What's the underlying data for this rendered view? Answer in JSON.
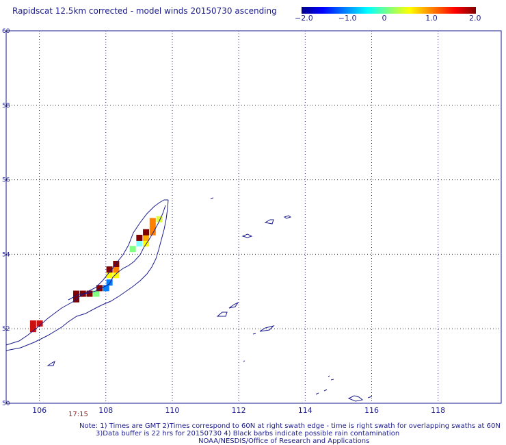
{
  "title": "Rapidscat 12.5km corrected - model winds 20150730 ascending",
  "colorbar": {
    "ticks": [
      "−2.0",
      "−1.0",
      "0",
      "1.0",
      "2.0"
    ],
    "tick_values": [
      -2.0,
      -1.0,
      0,
      1.0,
      2.0
    ],
    "colors": [
      "#00008a",
      "#0000ff",
      "#0080ff",
      "#00ffff",
      "#80ff80",
      "#ffff00",
      "#ff8000",
      "#ff0000",
      "#800000"
    ]
  },
  "map": {
    "lat_labels": [
      "60",
      "58",
      "56",
      "54",
      "52",
      "50"
    ],
    "lat_values": [
      60,
      58,
      56,
      54,
      52,
      50
    ],
    "lon_labels": [
      "106",
      "108",
      "110",
      "112",
      "114",
      "116",
      "118"
    ],
    "lon_values": [
      106,
      108,
      110,
      112,
      114,
      116,
      118
    ],
    "lon_range": [
      105.0,
      119.9
    ],
    "lat_range": [
      50.0,
      60.0
    ],
    "grid": "dotted",
    "cells": [
      {
        "lon": 105.8,
        "lat": 52.15,
        "color": "#cc1010"
      },
      {
        "lon": 106.0,
        "lat": 52.15,
        "color": "#cc1010"
      },
      {
        "lon": 105.8,
        "lat": 52.0,
        "color": "#cc1010"
      },
      {
        "lon": 107.1,
        "lat": 52.95,
        "color": "#800000"
      },
      {
        "lon": 107.3,
        "lat": 52.95,
        "color": "#800000"
      },
      {
        "lon": 107.5,
        "lat": 52.95,
        "color": "#800000"
      },
      {
        "lon": 107.7,
        "lat": 52.95,
        "color": "#80ff80"
      },
      {
        "lon": 107.1,
        "lat": 52.8,
        "color": "#800000"
      },
      {
        "lon": 107.8,
        "lat": 53.1,
        "color": "#800000"
      },
      {
        "lon": 108.0,
        "lat": 53.1,
        "color": "#0080ff"
      },
      {
        "lon": 108.1,
        "lat": 53.25,
        "color": "#0080ff"
      },
      {
        "lon": 108.1,
        "lat": 53.45,
        "color": "#ffff00"
      },
      {
        "lon": 108.3,
        "lat": 53.45,
        "color": "#ffff00"
      },
      {
        "lon": 108.1,
        "lat": 53.6,
        "color": "#800000"
      },
      {
        "lon": 108.3,
        "lat": 53.6,
        "color": "#ff8000"
      },
      {
        "lon": 108.3,
        "lat": 53.75,
        "color": "#800000"
      },
      {
        "lon": 108.8,
        "lat": 54.15,
        "color": "#80ff80"
      },
      {
        "lon": 109.0,
        "lat": 54.3,
        "color": "#80ffff"
      },
      {
        "lon": 109.2,
        "lat": 54.3,
        "color": "#ffff00"
      },
      {
        "lon": 109.0,
        "lat": 54.45,
        "color": "#800000"
      },
      {
        "lon": 109.2,
        "lat": 54.45,
        "color": "#ffaa00"
      },
      {
        "lon": 109.2,
        "lat": 54.6,
        "color": "#800000"
      },
      {
        "lon": 109.4,
        "lat": 54.6,
        "color": "#ff8000"
      },
      {
        "lon": 109.4,
        "lat": 54.75,
        "color": "#ff8000"
      },
      {
        "lon": 109.4,
        "lat": 54.9,
        "color": "#ff8000"
      },
      {
        "lon": 109.6,
        "lat": 54.95,
        "color": "#ddff40"
      }
    ],
    "time_label": "17:15"
  },
  "notes": {
    "line1": "Note: 1) Times are GMT 2)Times correspond to 60N at right swath edge - time is right swath for overlapping swaths at 60N",
    "line2": "3)Data buffer is 22 hrs for 20150730 4) Black barbs indicate possible rain contamination",
    "line3": "NOAA/NESDIS/Office of Research and Applications"
  }
}
